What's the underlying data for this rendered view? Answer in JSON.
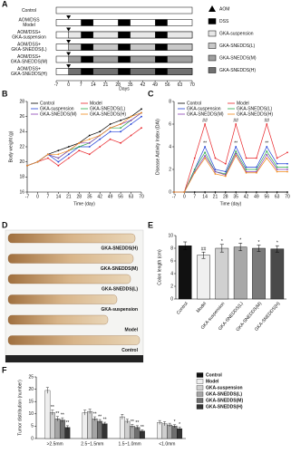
{
  "panel_a": {
    "label": "A",
    "rows": [
      [
        "Control"
      ],
      [
        "AOM/DSS",
        "Model"
      ],
      [
        "AOM/DSS+",
        "GKA-suspension"
      ],
      [
        "AOM/DSS+",
        "GKA-SNEDDS(L)"
      ],
      [
        "AOM/DSS+",
        "GKA-SNEDDS(M)"
      ],
      [
        "AOM/DSS+",
        "GKA-SNEDDS(H)"
      ]
    ],
    "legend": [
      "AOM",
      "DSS",
      "GKA-suspension",
      "GKA-SNEDDS(L)",
      "GKA-SNEDDS(M)",
      "GKA-SNEDDS(H)"
    ],
    "days": [
      -7,
      0,
      7,
      14,
      21,
      28,
      35,
      42,
      49,
      56,
      63,
      70
    ],
    "x_label": "Days"
  },
  "panel_d": {
    "label": "D",
    "samples": [
      "GKA-SNEDDS(H)",
      "GKA-SNEDDS(M)",
      "GKA-SNEDDS(L)",
      "GKA-suspension",
      "Model",
      "Control"
    ]
  },
  "chart_data": [
    {
      "type": "line",
      "label": "B",
      "x_label": "Time (day)",
      "y_label": "Body weight (g)",
      "x": [
        -7,
        0,
        7,
        14,
        21,
        28,
        35,
        42,
        49,
        56,
        63,
        70
      ],
      "xlim": [
        -7,
        70
      ],
      "xticks": [
        -7,
        0,
        7,
        14,
        21,
        28,
        35,
        42,
        49,
        56,
        63,
        70
      ],
      "ylim": [
        16,
        28
      ],
      "yticks": [
        16,
        18,
        20,
        22,
        24,
        26,
        28
      ],
      "series": [
        {
          "name": "Control",
          "color": "#000000",
          "values": [
            19.5,
            20,
            21,
            21.5,
            22,
            22.5,
            23.5,
            24,
            25,
            25.5,
            26,
            27
          ]
        },
        {
          "name": "Model",
          "color": "#e8262b",
          "values": [
            19.5,
            20,
            20.5,
            19.5,
            20.5,
            21.5,
            21,
            22,
            23,
            22.5,
            23.5,
            24.5
          ]
        },
        {
          "name": "GKA-suspension",
          "color": "#1f3fd6",
          "values": [
            19.5,
            20,
            21,
            20,
            21,
            22,
            22,
            23,
            24,
            24,
            25,
            26
          ]
        },
        {
          "name": "GKA-SNEDDS(L)",
          "color": "#2aa84a",
          "values": [
            19.5,
            20,
            21,
            20.5,
            21.5,
            22,
            22.5,
            23.5,
            24.5,
            24.5,
            25.5,
            26.5
          ]
        },
        {
          "name": "GKA-SNEDDS(M)",
          "color": "#8a3fb5",
          "values": [
            19.5,
            20,
            21,
            20.5,
            21.5,
            22.5,
            22.5,
            23.5,
            24.5,
            25,
            25.5,
            26.5
          ]
        },
        {
          "name": "GKA-SNEDDS(H)",
          "color": "#f08a1c",
          "values": [
            19.5,
            20,
            21,
            21,
            21.5,
            22.5,
            23,
            23.5,
            24.5,
            25,
            26,
            26.5
          ]
        }
      ]
    },
    {
      "type": "line",
      "label": "C",
      "x_label": "Time (day)",
      "y_label": "Disease Activity Index (DAI)",
      "x": [
        -7,
        0,
        7,
        14,
        21,
        28,
        35,
        42,
        49,
        56,
        63,
        70
      ],
      "xlim": [
        -7,
        70
      ],
      "xticks": [
        -7,
        0,
        7,
        14,
        21,
        28,
        35,
        42,
        49,
        56,
        63,
        70
      ],
      "ylim": [
        0,
        8
      ],
      "yticks": [
        0,
        2,
        4,
        6,
        8
      ],
      "series": [
        {
          "name": "Control",
          "color": "#000000",
          "values": [
            0,
            0,
            0,
            0,
            0,
            0,
            0,
            0,
            0,
            0,
            0,
            0
          ]
        },
        {
          "name": "Model",
          "color": "#e8262b",
          "values": [
            0,
            0,
            3,
            6,
            3,
            2.5,
            6,
            3,
            3,
            6,
            3,
            3.5
          ],
          "annotations": [
            null,
            null,
            null,
            "##",
            null,
            null,
            "##",
            null,
            null,
            "##",
            null,
            null
          ]
        },
        {
          "name": "GKA-suspension",
          "color": "#1f3fd6",
          "values": [
            0,
            0,
            2,
            4,
            2,
            1.8,
            4,
            2.2,
            2.2,
            4,
            2.5,
            2.5
          ],
          "annotations": [
            null,
            null,
            null,
            "**",
            null,
            null,
            "**",
            null,
            null,
            "**",
            null,
            null
          ]
        },
        {
          "name": "GKA-SNEDDS(L)",
          "color": "#2aa84a",
          "values": [
            0,
            0,
            2,
            3.5,
            1.8,
            1.6,
            3.6,
            2,
            2,
            3.6,
            2.2,
            2.2
          ]
        },
        {
          "name": "GKA-SNEDDS(M)",
          "color": "#8a3fb5",
          "values": [
            0,
            0,
            1.8,
            3.2,
            1.8,
            1.5,
            3.4,
            1.8,
            1.8,
            3.3,
            2,
            2
          ]
        },
        {
          "name": "GKA-SNEDDS(H)",
          "color": "#f08a1c",
          "values": [
            0,
            0,
            1.7,
            3,
            1.6,
            1.4,
            3.2,
            1.7,
            1.7,
            3,
            1.8,
            1.8
          ]
        }
      ]
    },
    {
      "type": "bar",
      "label": "E",
      "y_label": "Colon length (cm)",
      "categories": [
        "Control",
        "Model",
        "GKA-suspension",
        "GKA-SNEDDS(L)",
        "GKA-SNEDDS(M)",
        "GKA-SNEDDS(H)"
      ],
      "values": [
        8.4,
        6.9,
        8.0,
        8.2,
        8.0,
        7.9
      ],
      "errors": [
        0.6,
        0.5,
        0.6,
        0.6,
        0.5,
        0.5
      ],
      "annotations": [
        null,
        "##",
        "*",
        "*",
        "*",
        "*"
      ],
      "colors": [
        "#111111",
        "#f0f0f0",
        "#d0d0d0",
        "#a8a8a8",
        "#7a7a7a",
        "#4a4a4a"
      ],
      "ylim": [
        0,
        10
      ],
      "yticks": [
        0,
        2,
        4,
        6,
        8,
        10
      ]
    },
    {
      "type": "grouped_bar",
      "label": "F",
      "y_label": "Tumor distribution (number)",
      "categories": [
        ">2.5mm",
        "2.5~1.5mm",
        "1.5~1.0mm",
        "<1.0mm"
      ],
      "ylim": [
        0,
        25
      ],
      "yticks": [
        0,
        5,
        10,
        15,
        20,
        25
      ],
      "series": [
        {
          "name": "Control",
          "color": "#111111",
          "values": [
            0,
            0,
            0,
            0
          ]
        },
        {
          "name": "Model",
          "color": "#eeeeee",
          "values": [
            19.5,
            10.5,
            8.8,
            6.5
          ],
          "errors": [
            1.2,
            1,
            1,
            0.8
          ]
        },
        {
          "name": "GKA-suspension",
          "color": "#cfcfcf",
          "values": [
            10.5,
            11,
            7,
            6
          ],
          "errors": [
            1,
            0.9,
            0.8,
            0.8
          ],
          "annotations": [
            "**",
            null,
            null,
            null
          ]
        },
        {
          "name": "GKA-SNEDDS(L)",
          "color": "#a5a5a5",
          "values": [
            8,
            8,
            5,
            5.5
          ],
          "errors": [
            0.9,
            0.8,
            0.7,
            0.7
          ],
          "annotations": [
            "**",
            "**",
            "**",
            null
          ]
        },
        {
          "name": "GKA-SNEDDS(M)",
          "color": "#6f6f6f",
          "values": [
            7.5,
            7,
            4.5,
            5
          ],
          "errors": [
            0.9,
            0.7,
            0.7,
            0.6
          ],
          "annotations": [
            "**",
            "**",
            "**",
            "*"
          ]
        },
        {
          "name": "GKA-SNEDDS(H)",
          "color": "#333333",
          "values": [
            4.5,
            6,
            3,
            4
          ],
          "errors": [
            0.7,
            0.6,
            0.5,
            0.6
          ],
          "annotations": [
            "**",
            "**",
            "**",
            "*"
          ]
        }
      ]
    }
  ]
}
